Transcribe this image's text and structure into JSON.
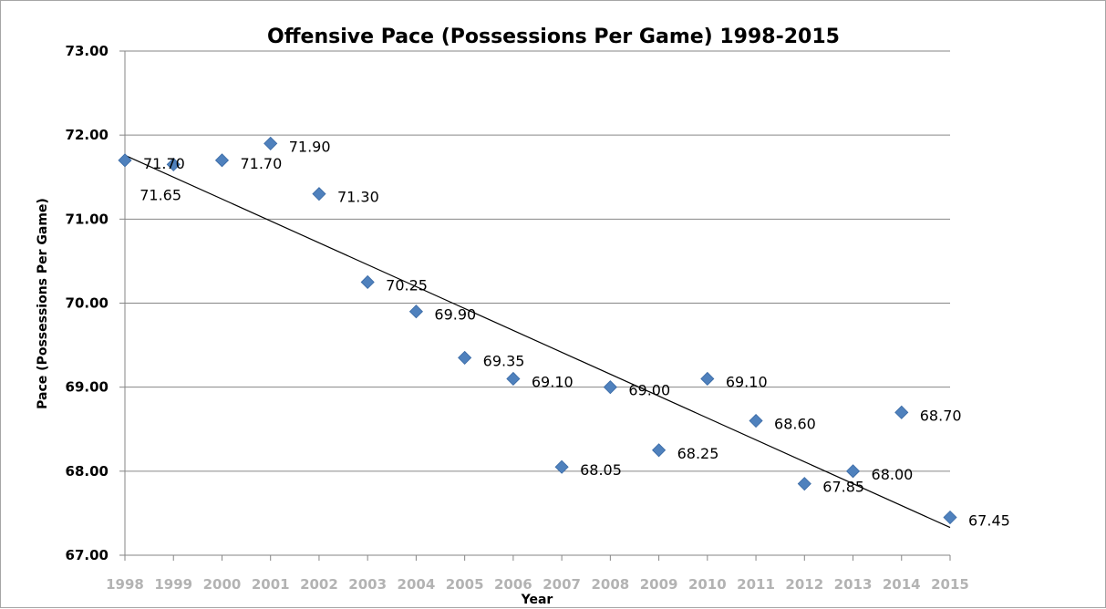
{
  "chart_data": {
    "type": "scatter",
    "title": "Offensive Pace (Possessions Per Game) 1998-2015",
    "xlabel": "Year",
    "ylabel": "Pace (Possessions Per Game)",
    "ylim": [
      67.0,
      73.0
    ],
    "y_ticks": [
      "67.00",
      "68.00",
      "69.00",
      "70.00",
      "71.00",
      "72.00",
      "73.00"
    ],
    "x_ticks": [
      "1998",
      "1999",
      "2000",
      "2001",
      "2002",
      "2003",
      "2004",
      "2005",
      "2006",
      "2007",
      "2008",
      "2009",
      "2010",
      "2011",
      "2012",
      "2013",
      "2014",
      "2015"
    ],
    "grid": true,
    "legend": "none",
    "marker": "diamond",
    "marker_color": "#4f81bd",
    "series": [
      {
        "x": [
          1998,
          1999,
          2000,
          2001,
          2002,
          2003,
          2004,
          2005,
          2006,
          2007,
          2008,
          2009,
          2010,
          2011,
          2012,
          2013,
          2014,
          2015
        ],
        "values": [
          71.7,
          71.65,
          71.7,
          71.9,
          71.3,
          70.25,
          69.9,
          69.35,
          69.1,
          68.05,
          69.0,
          68.25,
          69.1,
          68.6,
          67.85,
          68.0,
          68.7,
          67.45
        ],
        "labels": [
          "71.70",
          "71.65",
          "71.70",
          "71.90",
          "71.30",
          "70.25",
          "69.90",
          "69.35",
          "69.10",
          "68.05",
          "69.00",
          "68.25",
          "69.10",
          "68.60",
          "67.85",
          "68.00",
          "68.70",
          "67.45"
        ]
      }
    ],
    "trendline": {
      "type": "linear",
      "color": "#000000",
      "start": [
        1998,
        71.76
      ],
      "end": [
        2015,
        67.33
      ]
    }
  }
}
